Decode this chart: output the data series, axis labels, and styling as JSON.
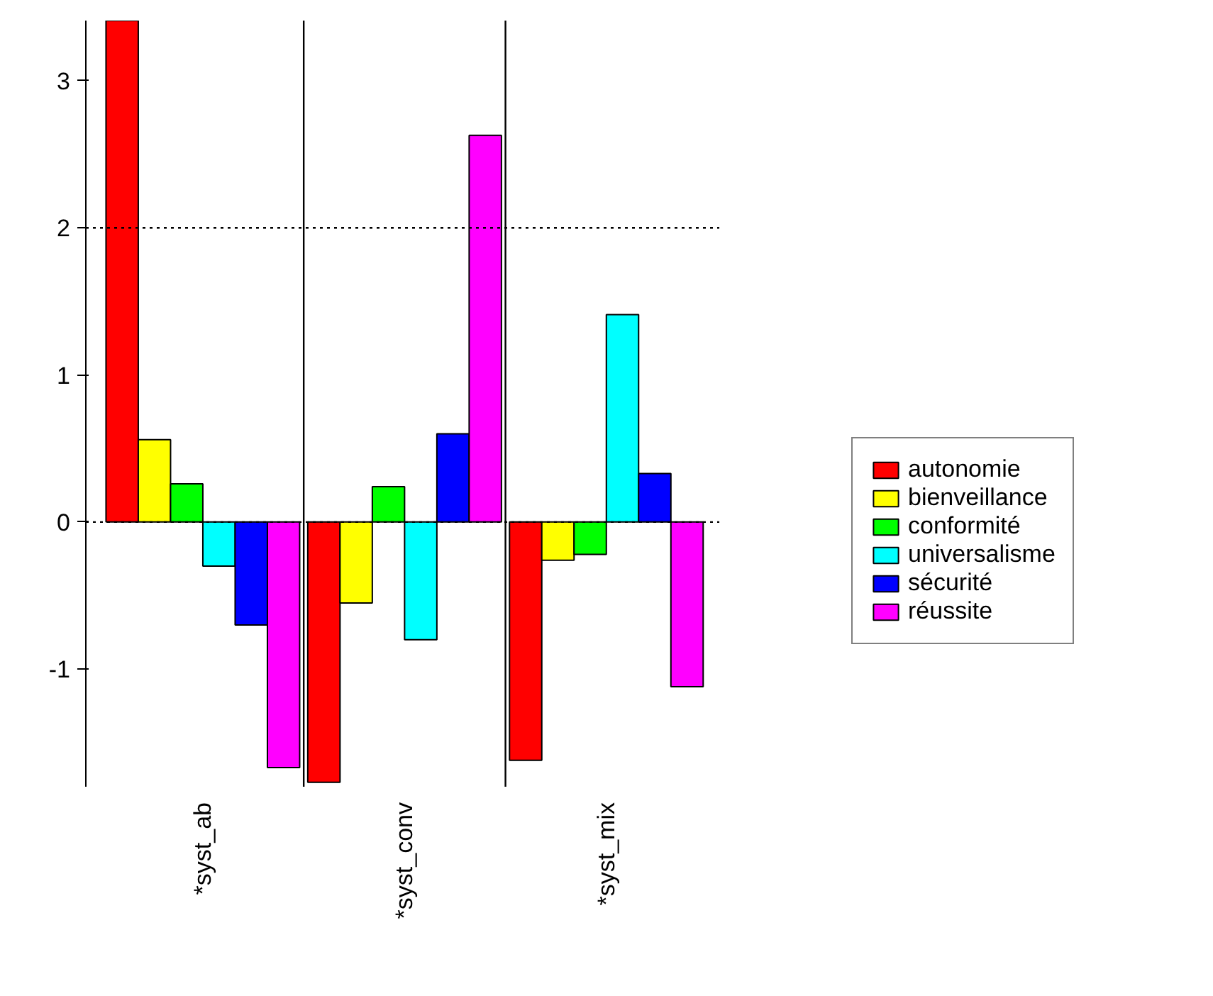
{
  "chart_data": {
    "type": "bar",
    "categories": [
      "*syst_ab",
      "*syst_conv",
      "*syst_mix"
    ],
    "series": [
      {
        "name": "autonomie",
        "color": "#ff0000",
        "values": [
          3.41,
          -1.77,
          -1.62
        ]
      },
      {
        "name": "bienveillance",
        "color": "#ffff00",
        "values": [
          0.56,
          -0.55,
          -0.26
        ]
      },
      {
        "name": "conformité",
        "color": "#00ff00",
        "values": [
          0.26,
          0.24,
          -0.22
        ]
      },
      {
        "name": "universalisme",
        "color": "#00ffff",
        "values": [
          -0.3,
          -0.8,
          1.41
        ]
      },
      {
        "name": "sécurité",
        "color": "#0000ff",
        "values": [
          -0.7,
          0.6,
          0.33
        ]
      },
      {
        "name": "réussite",
        "color": "#ff00ff",
        "values": [
          -1.67,
          2.63,
          -1.12
        ]
      }
    ],
    "ylim": [
      -1.8,
      3.41
    ],
    "yticks": [
      -1,
      0,
      1,
      2,
      3
    ],
    "grid": false,
    "legend": "right",
    "ref_lines": [
      {
        "axis": "y",
        "value": 2,
        "line_style": "dotted",
        "color": "#000000"
      },
      {
        "axis": "y",
        "value": 0,
        "line_style": "dotted",
        "color": "#000000"
      }
    ]
  }
}
